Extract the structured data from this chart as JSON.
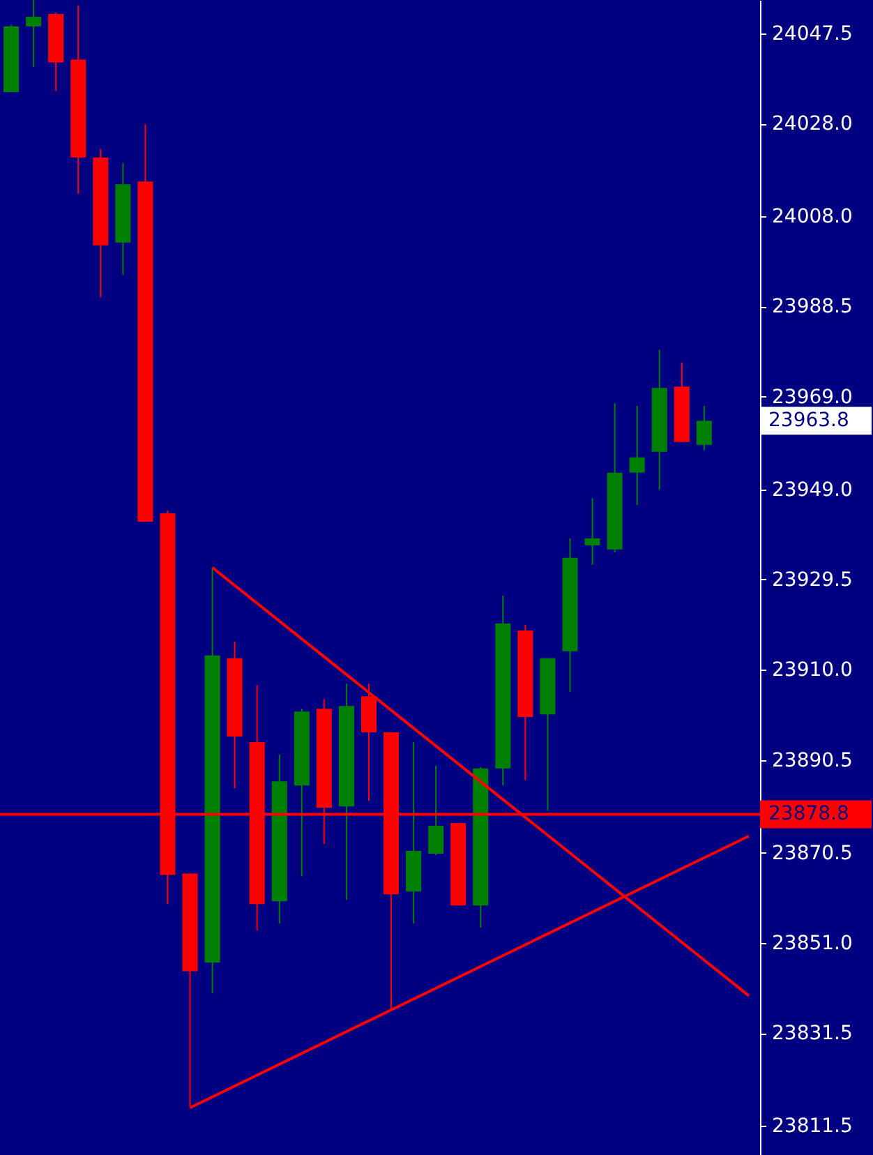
{
  "chart_data": {
    "type": "candlestick",
    "categories": [
      null,
      null,
      null,
      null,
      null,
      null,
      null,
      null,
      null,
      null,
      null,
      null,
      null,
      null,
      null,
      null,
      null,
      null,
      null,
      null,
      null,
      null,
      null,
      null,
      null,
      null,
      null,
      null,
      null,
      null,
      null,
      null,
      null,
      null
    ],
    "ohlc": [
      [
        24034.8,
        24049.3,
        24034.8,
        24049.0
      ],
      [
        24049.0,
        24054.7,
        24040.3,
        24051.1
      ],
      [
        24051.7,
        24052.0,
        24035.1,
        24041.2
      ],
      [
        24041.8,
        24053.5,
        24012.8,
        24020.7
      ],
      [
        24020.7,
        24022.5,
        23990.5,
        24001.7
      ],
      [
        24002.3,
        24019.5,
        23995.3,
        24014.9
      ],
      [
        24015.5,
        24027.9,
        23942.0,
        23942.0
      ],
      [
        23943.8,
        23944.4,
        23859.4,
        23865.7
      ],
      [
        23866.0,
        23866.0,
        23815.4,
        23844.9
      ],
      [
        23846.8,
        23932.1,
        23840.1,
        23913.1
      ],
      [
        23912.5,
        23916.1,
        23884.4,
        23895.6
      ],
      [
        23894.4,
        23906.7,
        23853.7,
        23859.4
      ],
      [
        23860.0,
        23891.7,
        23855.2,
        23885.9
      ],
      [
        23885.0,
        23901.6,
        23865.4,
        23901.0
      ],
      [
        23901.6,
        23903.7,
        23872.4,
        23880.2
      ],
      [
        23880.5,
        23907.0,
        23860.3,
        23902.2
      ],
      [
        23904.3,
        23907.0,
        23881.7,
        23896.5
      ],
      [
        23896.5,
        23896.5,
        23836.5,
        23861.5
      ],
      [
        23862.1,
        23894.4,
        23855.2,
        23870.9
      ],
      [
        23870.3,
        23889.3,
        23870.0,
        23876.3
      ],
      [
        23876.9,
        23876.9,
        23859.1,
        23859.1
      ],
      [
        23859.1,
        23889.0,
        23854.3,
        23888.7
      ],
      [
        23888.7,
        23926.0,
        23885.0,
        23920.0
      ],
      [
        23918.5,
        23919.7,
        23886.2,
        23899.8
      ],
      [
        23900.4,
        23912.5,
        23879.6,
        23912.5
      ],
      [
        23914.0,
        23938.4,
        23905.2,
        23934.2
      ],
      [
        23936.9,
        23947.1,
        23932.7,
        23938.4
      ],
      [
        23936.0,
        23967.6,
        23935.4,
        23952.6
      ],
      [
        23952.6,
        23967.0,
        23945.6,
        23955.9
      ],
      [
        23957.1,
        23979.1,
        23948.9,
        23970.9
      ],
      [
        23971.2,
        23976.4,
        23959.2,
        23959.2
      ],
      [
        23958.6,
        23967.0,
        23957.4,
        23963.8
      ],
      null,
      null
    ],
    "colors": [
      "#008000",
      "#008000",
      "#ff0000",
      "#ff0000",
      "#ff0000",
      "#008000",
      "#ff0000",
      "#ff0000",
      "#ff0000",
      "#008000",
      "#ff0000",
      "#ff0000",
      "#008000",
      "#008000",
      "#ff0000",
      "#008000",
      "#ff0000",
      "#ff0000",
      "#008000",
      "#008000",
      "#ff0000",
      "#008000",
      "#008000",
      "#ff0000",
      "#008000",
      "#008000",
      "#008000",
      "#008000",
      "#008000",
      "#008000",
      "#ff0000",
      "#008000",
      null,
      null
    ],
    "series": [
      {
        "type": "line",
        "color": "#ff0000",
        "values": [
          null,
          null,
          null,
          null,
          null,
          null,
          null,
          null,
          null,
          23932.1,
          null,
          null,
          null,
          null,
          null,
          null,
          null,
          null,
          null,
          null,
          null,
          null,
          null,
          null,
          null,
          null,
          null,
          null,
          null,
          null,
          null,
          null,
          null,
          23839.6
        ]
      },
      {
        "type": "line",
        "color": "#ff0000",
        "values": [
          null,
          null,
          null,
          null,
          null,
          null,
          null,
          null,
          23815.4,
          null,
          null,
          null,
          null,
          null,
          null,
          null,
          null,
          null,
          null,
          null,
          null,
          null,
          null,
          null,
          null,
          null,
          null,
          null,
          null,
          null,
          null,
          null,
          null,
          23874.1
        ]
      }
    ],
    "ref_lines": [
      {
        "axis": "y",
        "value": 23878.8,
        "label": "23878.8",
        "color": "#ff0000"
      }
    ],
    "annotations": [
      "23963.8"
    ],
    "ylim": [
      23805.2,
      24054.7
    ],
    "yticks": [
      24047.5,
      {
        "value": 24028,
        "label": "24028.0"
      },
      {
        "value": 24008,
        "label": "24008.0"
      },
      23988.5,
      {
        "value": 23969,
        "label": "23969.0"
      },
      {
        "value": 23949,
        "label": "23949.0"
      },
      23929.5,
      {
        "value": 23910,
        "label": "23910.0"
      },
      23890.5,
      23870.5,
      {
        "value": 23851,
        "label": "23851.0"
      },
      23831.5,
      23811.5
    ],
    "tick_labels": "y"
  }
}
